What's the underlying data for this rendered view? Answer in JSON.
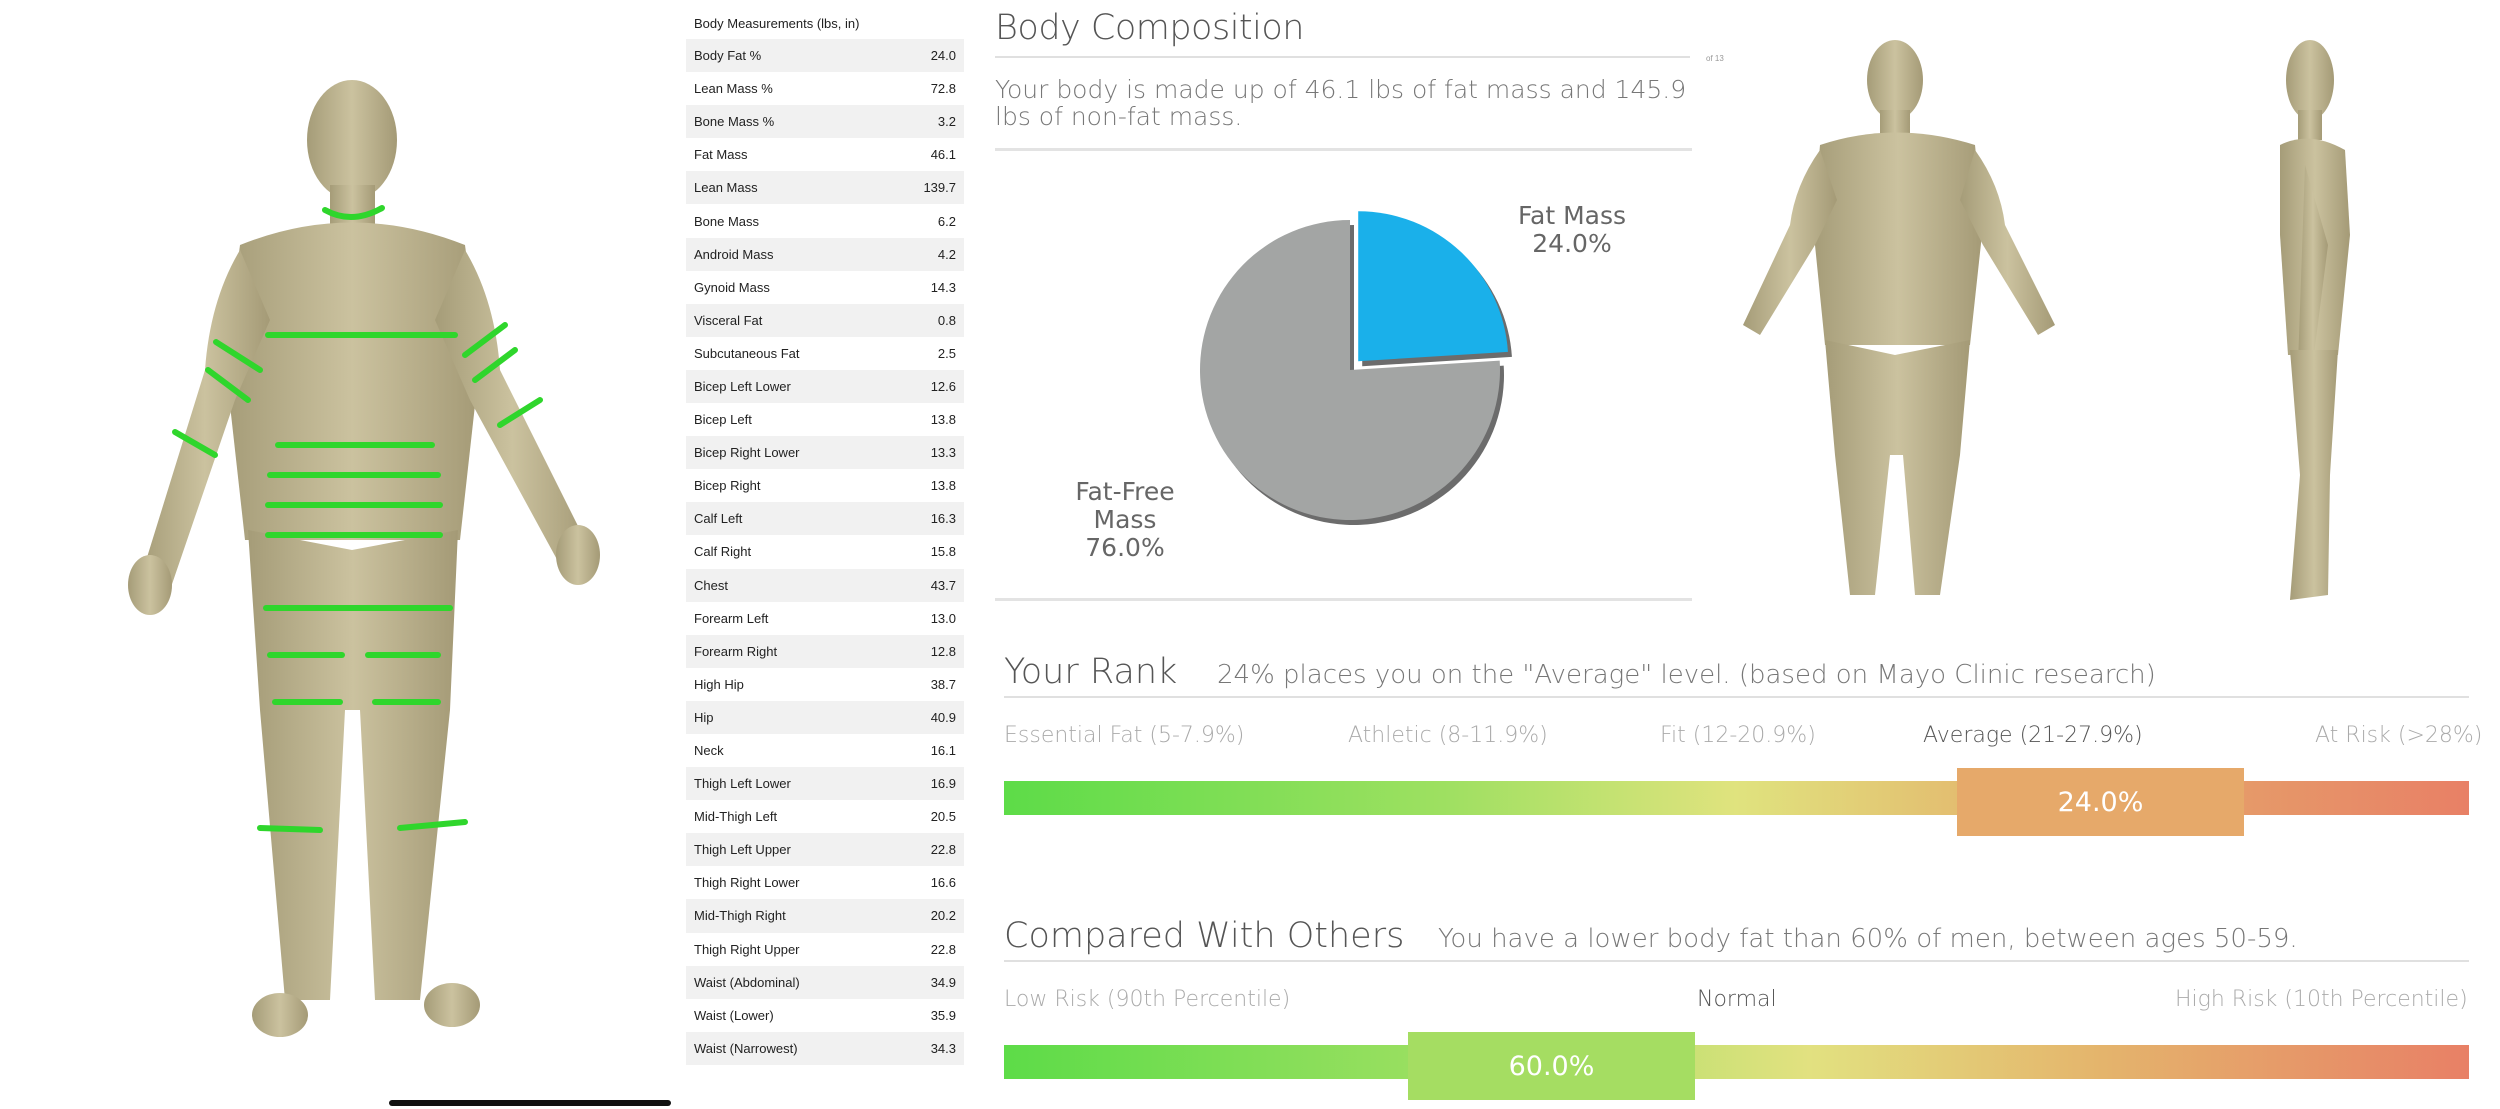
{
  "table": {
    "title": "Body Measurements (lbs, in)",
    "rows": [
      {
        "label": "Body Fat %",
        "value": "24.0"
      },
      {
        "label": "Lean Mass %",
        "value": "72.8"
      },
      {
        "label": "Bone Mass %",
        "value": "3.2"
      },
      {
        "label": "Fat Mass",
        "value": "46.1"
      },
      {
        "label": "Lean Mass",
        "value": "139.7"
      },
      {
        "label": "Bone Mass",
        "value": "6.2"
      },
      {
        "label": "Android Mass",
        "value": "4.2"
      },
      {
        "label": "Gynoid Mass",
        "value": "14.3"
      },
      {
        "label": "Visceral Fat",
        "value": "0.8"
      },
      {
        "label": "Subcutaneous Fat",
        "value": "2.5"
      },
      {
        "label": "Bicep Left Lower",
        "value": "12.6"
      },
      {
        "label": "Bicep Left",
        "value": "13.8"
      },
      {
        "label": "Bicep Right Lower",
        "value": "13.3"
      },
      {
        "label": "Bicep Right",
        "value": "13.8"
      },
      {
        "label": "Calf Left",
        "value": "16.3"
      },
      {
        "label": "Calf Right",
        "value": "15.8"
      },
      {
        "label": "Chest",
        "value": "43.7"
      },
      {
        "label": "Forearm Left",
        "value": "13.0"
      },
      {
        "label": "Forearm Right",
        "value": "12.8"
      },
      {
        "label": "High Hip",
        "value": "38.7"
      },
      {
        "label": "Hip",
        "value": "40.9"
      },
      {
        "label": "Neck",
        "value": "16.1"
      },
      {
        "label": "Thigh Left Lower",
        "value": "16.9"
      },
      {
        "label": "Mid-Thigh Left",
        "value": "20.5"
      },
      {
        "label": "Thigh Left Upper",
        "value": "22.8"
      },
      {
        "label": "Thigh Right Lower",
        "value": "16.6"
      },
      {
        "label": "Mid-Thigh Right",
        "value": "20.2"
      },
      {
        "label": "Thigh Right Upper",
        "value": "22.8"
      },
      {
        "label": "Waist (Abdominal)",
        "value": "34.9"
      },
      {
        "label": "Waist (Lower)",
        "value": "35.9"
      },
      {
        "label": "Waist (Narrowest)",
        "value": "34.3"
      }
    ]
  },
  "composition": {
    "title": "Body Composition",
    "page_indicator": "of 13",
    "description": "Your body is made up of 46.1 lbs of fat mass and 145.9 lbs of non-fat mass.",
    "fat_label": "Fat Mass",
    "fat_value": "24.0%",
    "free_label_1": "Fat-Free",
    "free_label_2": "Mass",
    "free_value": "76.0%",
    "colors": {
      "fat": "#1ab0ea",
      "free": "#a3a5a4"
    }
  },
  "chart_data": {
    "type": "pie",
    "labels": [
      "Fat Mass",
      "Fat-Free Mass"
    ],
    "values": [
      24.0,
      76.0
    ],
    "title": "",
    "legend": "none"
  },
  "rank": {
    "title": "Your Rank",
    "description": "24% places you on the \"Average\" level. (based on Mayo Clinic research)",
    "segments": [
      "Essential Fat (5-7.9%)",
      "Athletic (8-11.9%)",
      "Fit (12-20.9%)",
      "Average (21-27.9%)",
      "At Risk (>28%)"
    ],
    "marker": "24.0%"
  },
  "compare": {
    "title": "Compared With Others",
    "description": "You have a lower body fat than 60% of men, between ages 50-59.",
    "low": "Low Risk (90th Percentile)",
    "mid": "Normal",
    "high": "High Risk (10th Percentile)",
    "marker": "60.0%"
  }
}
